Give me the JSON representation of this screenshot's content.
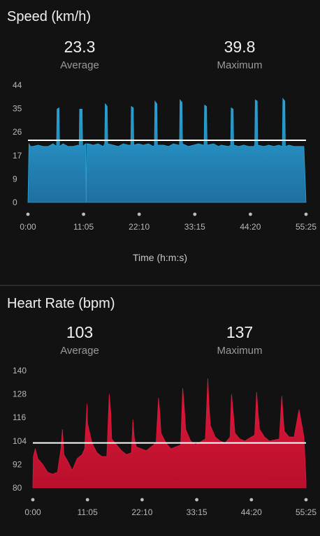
{
  "colors": {
    "speed": "#2aa3d6",
    "speed_dark": "#1f6fa0",
    "heart": "#e0183c",
    "heart_dark": "#b8102c",
    "avg_line": "#ffffff",
    "marker": "#bdbdbd"
  },
  "speed": {
    "title": "Speed (km/h)",
    "average_value": "23.3",
    "average_label": "Average",
    "maximum_value": "39.8",
    "maximum_label": "Maximum",
    "x_axis_title": "Time (h:m:s)"
  },
  "heart": {
    "title": "Heart Rate (bpm)",
    "average_value": "103",
    "average_label": "Average",
    "maximum_value": "137",
    "maximum_label": "Maximum"
  },
  "chart_data": [
    {
      "type": "area",
      "title": "Speed (km/h)",
      "xlabel": "Time (h:m:s)",
      "ylabel": "",
      "ylim": [
        0,
        44
      ],
      "yticks": [
        "0",
        "9",
        "17",
        "26",
        "35",
        "44"
      ],
      "xticks": [
        "0:00",
        "11:05",
        "22:10",
        "33:15",
        "44:20",
        "55:25"
      ],
      "xlim_minutes": [
        0,
        55.42
      ],
      "average": 23.3,
      "maximum": 39.8,
      "series": [
        {
          "x": [
            0,
            0.2,
            0.5,
            1,
            2,
            3,
            4,
            5,
            5.7,
            5.8,
            6.2,
            6.3,
            7,
            8,
            9,
            10,
            10.2,
            10.3,
            10.8,
            10.9,
            11.5,
            11.6,
            11.7,
            12,
            13,
            14,
            15,
            15.3,
            15.4,
            15.8,
            15.9,
            17,
            18,
            19,
            20,
            20.5,
            20.6,
            21,
            21.1,
            22,
            23,
            24,
            25,
            25.2,
            25.3,
            25.7,
            25.8,
            27,
            28,
            29,
            30,
            30.2,
            30.3,
            30.7,
            30.8,
            32,
            33,
            34,
            35,
            35.1,
            35.2,
            35.6,
            35.7,
            37,
            38,
            38.5,
            40,
            40.4,
            40.5,
            40.9,
            41,
            42,
            43,
            44,
            45,
            45.2,
            45.3,
            45.7,
            45.8,
            47,
            48,
            49,
            50,
            50.7,
            50.8,
            51.2,
            51.3,
            52,
            53,
            54,
            55,
            55.42
          ],
          "values": [
            0,
            22,
            21,
            21,
            21.5,
            21,
            21,
            22,
            21,
            35,
            35.5,
            21,
            22,
            21,
            21,
            21.5,
            21,
            35,
            35,
            21,
            22,
            0,
            22,
            22,
            21.5,
            22,
            21,
            22,
            37,
            36,
            22,
            21.5,
            21,
            22,
            21.5,
            21.5,
            36,
            35.5,
            21.5,
            22,
            21.5,
            22,
            21,
            21.5,
            38,
            37,
            21.5,
            21.5,
            21,
            22,
            21.5,
            21.5,
            38.5,
            37.5,
            22,
            21,
            21.5,
            22,
            21.5,
            21.5,
            36.5,
            36,
            21.5,
            22,
            21,
            21.5,
            21,
            21.5,
            35.5,
            35,
            21.5,
            21,
            21.5,
            21,
            21,
            21.5,
            38.5,
            38,
            21.5,
            21,
            21.5,
            21,
            21.5,
            21,
            39,
            38,
            21,
            21.5,
            21,
            21,
            21,
            0
          ]
        }
      ]
    },
    {
      "type": "area",
      "title": "Heart Rate (bpm)",
      "xlabel": "",
      "ylabel": "",
      "ylim": [
        80,
        140
      ],
      "yticks": [
        "80",
        "92",
        "104",
        "116",
        "128",
        "140"
      ],
      "xticks": [
        "0:00",
        "11:05",
        "22:10",
        "33:15",
        "44:20",
        "55:25"
      ],
      "xlim_minutes": [
        0,
        55.42
      ],
      "average": 103,
      "maximum": 137,
      "series": [
        {
          "x": [
            0,
            0.1,
            0.5,
            1,
            2,
            3,
            4,
            5,
            5.7,
            6,
            6.3,
            7,
            8,
            9,
            10,
            10.5,
            11,
            11.1,
            12,
            13,
            14,
            15,
            15.5,
            15.8,
            16,
            17,
            18,
            19,
            20,
            20.3,
            20.6,
            21,
            22,
            23,
            25,
            25.5,
            25.8,
            26,
            27,
            28,
            29,
            30,
            30.4,
            30.7,
            31,
            32,
            33,
            35,
            35.5,
            35.7,
            36,
            37,
            38,
            39,
            40,
            40.3,
            40.7,
            41,
            42,
            43,
            45,
            45.4,
            45.7,
            46,
            47,
            48,
            50,
            50.5,
            50.8,
            51,
            52,
            53,
            54,
            55,
            55.42
          ],
          "values": [
            81,
            96,
            100,
            95,
            92,
            88,
            87,
            88,
            100,
            110,
            97,
            94,
            89,
            95,
            97,
            100,
            123,
            113,
            103,
            98,
            96,
            96,
            128,
            119,
            105,
            102,
            99,
            97,
            98,
            115,
            105,
            101,
            100,
            99,
            103,
            126,
            117,
            108,
            103,
            100,
            101,
            102,
            131,
            122,
            110,
            104,
            102,
            105,
            136,
            124,
            112,
            106,
            104,
            103,
            106,
            128,
            117,
            108,
            105,
            104,
            107,
            129,
            118,
            110,
            106,
            104,
            105,
            127,
            116,
            109,
            106,
            106,
            120,
            106,
            84
          ]
        }
      ]
    }
  ]
}
